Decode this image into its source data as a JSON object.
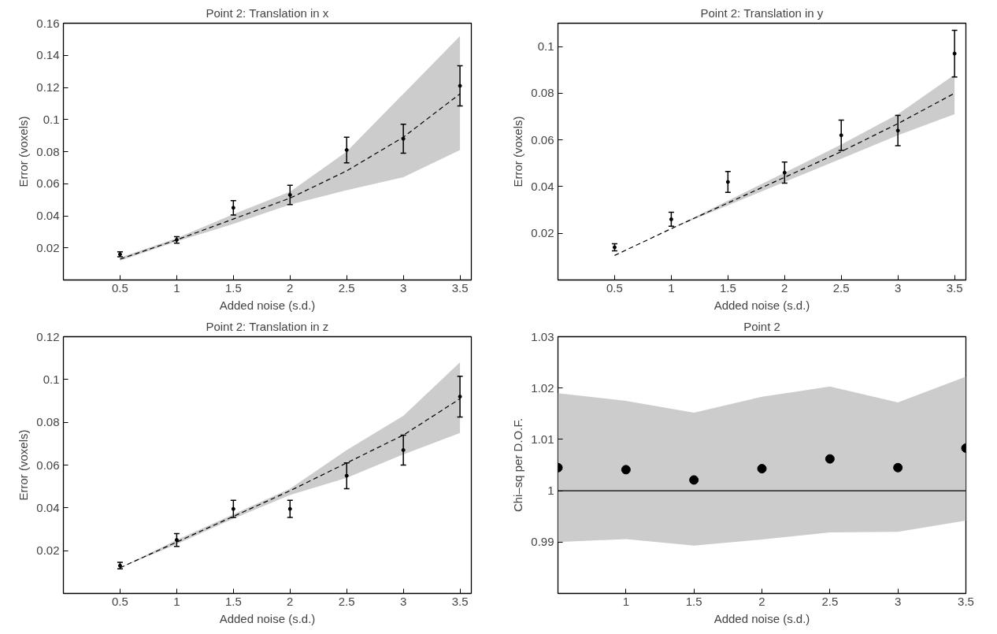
{
  "chart_data": [
    {
      "type": "scatter",
      "title": "Point 2: Translation in x",
      "xlabel": "Added noise (s.d.)",
      "ylabel": "Error (voxels)",
      "xlim": [
        0,
        3.6
      ],
      "ylim": [
        0,
        0.16
      ],
      "xticks": [
        0.5,
        1,
        1.5,
        2,
        2.5,
        3,
        3.5
      ],
      "yticks": [
        0.02,
        0.04,
        0.06,
        0.08,
        0.1,
        0.12,
        0.14,
        0.16
      ],
      "grid": false,
      "series": [
        {
          "type": "line",
          "marker": "none",
          "color": "#000000",
          "line_style": "dashed",
          "x": [
            0.5,
            1,
            1.5,
            2,
            2.5,
            3,
            3.5
          ],
          "values": [
            0.013,
            0.025,
            0.038,
            0.051,
            0.068,
            0.089,
            0.116
          ],
          "lower": [
            0.012,
            0.024,
            0.035,
            0.047,
            0.056,
            0.064,
            0.081
          ],
          "upper": [
            0.014,
            0.026,
            0.041,
            0.055,
            0.08,
            0.116,
            0.152
          ]
        },
        {
          "marker": "circle",
          "color": "#000000",
          "x": [
            0.5,
            1,
            1.5,
            2,
            2.5,
            3,
            3.5
          ],
          "values": [
            0.016,
            0.025,
            0.045,
            0.053,
            0.081,
            0.088,
            0.121
          ],
          "errors": [
            0.0015,
            0.002,
            0.0045,
            0.006,
            0.008,
            0.009,
            0.0125
          ]
        }
      ]
    },
    {
      "type": "scatter",
      "title": "Point 2: Translation in y",
      "xlabel": "Added noise (s.d.)",
      "ylabel": "Error (voxels)",
      "xlim": [
        0,
        3.6
      ],
      "ylim": [
        0,
        0.11
      ],
      "xticks": [
        0.5,
        1,
        1.5,
        2,
        2.5,
        3,
        3.5
      ],
      "yticks": [
        0.02,
        0.04,
        0.06,
        0.08,
        0.1
      ],
      "grid": false,
      "series": [
        {
          "type": "line",
          "marker": "none",
          "color": "#000000",
          "line_style": "dashed",
          "x": [
            0.5,
            1,
            1.5,
            2,
            2.5,
            3,
            3.5
          ],
          "values": [
            0.0105,
            0.022,
            0.033,
            0.044,
            0.055,
            0.067,
            0.08
          ],
          "lower": [
            0.0105,
            0.022,
            0.032,
            0.042,
            0.052,
            0.062,
            0.071
          ],
          "upper": [
            0.0105,
            0.022,
            0.034,
            0.046,
            0.058,
            0.071,
            0.088
          ]
        },
        {
          "marker": "circle",
          "color": "#000000",
          "x": [
            0.5,
            1,
            1.5,
            2,
            2.5,
            3,
            3.5
          ],
          "values": [
            0.014,
            0.026,
            0.042,
            0.046,
            0.062,
            0.064,
            0.097
          ],
          "errors": [
            0.0015,
            0.003,
            0.0045,
            0.0045,
            0.0065,
            0.0065,
            0.01
          ]
        }
      ]
    },
    {
      "type": "scatter",
      "title": "Point 2: Translation in z",
      "xlabel": "Added noise (s.d.)",
      "ylabel": "Error (voxels)",
      "xlim": [
        0,
        3.6
      ],
      "ylim": [
        0,
        0.12
      ],
      "xticks": [
        0.5,
        1,
        1.5,
        2,
        2.5,
        3,
        3.5
      ],
      "yticks": [
        0.02,
        0.04,
        0.06,
        0.08,
        0.1,
        0.12
      ],
      "grid": false,
      "series": [
        {
          "type": "line",
          "marker": "none",
          "color": "#000000",
          "line_style": "dashed",
          "x": [
            0.5,
            1,
            1.5,
            2,
            2.5,
            3,
            3.5
          ],
          "values": [
            0.012,
            0.024,
            0.036,
            0.048,
            0.061,
            0.074,
            0.091
          ],
          "lower": [
            0.012,
            0.023,
            0.035,
            0.046,
            0.054,
            0.065,
            0.075
          ],
          "upper": [
            0.012,
            0.025,
            0.037,
            0.049,
            0.067,
            0.083,
            0.108
          ]
        },
        {
          "marker": "circle",
          "color": "#000000",
          "x": [
            0.5,
            1,
            1.5,
            2,
            2.5,
            3,
            3.5
          ],
          "values": [
            0.013,
            0.025,
            0.0395,
            0.0395,
            0.055,
            0.067,
            0.092
          ],
          "errors": [
            0.0015,
            0.003,
            0.004,
            0.004,
            0.006,
            0.007,
            0.0095
          ]
        }
      ]
    },
    {
      "type": "scatter",
      "title": "Point 2",
      "xlabel": "Added noise (s.d.)",
      "ylabel": "Chi–sq per D.O.F.",
      "xlim": [
        0.5,
        3.5
      ],
      "ylim": [
        0.98,
        1.03
      ],
      "xticks": [
        1,
        1.5,
        2,
        2.5,
        3,
        3.5
      ],
      "yticks": [
        0.99,
        1,
        1.01,
        1.02,
        1.03
      ],
      "grid": false,
      "series": [
        {
          "type": "line",
          "marker": "none",
          "color": "#000000",
          "line_style": "solid",
          "x": [
            0.5,
            1,
            1.5,
            2,
            2.5,
            3,
            3.5
          ],
          "values": [
            1,
            1,
            1,
            1,
            1,
            1,
            1
          ],
          "lower": [
            0.99,
            0.9906,
            0.9893,
            0.9905,
            0.9919,
            0.992,
            0.9942
          ],
          "upper": [
            1.019,
            1.0175,
            1.0152,
            1.0183,
            1.0203,
            1.0172,
            1.0222
          ]
        },
        {
          "marker": "circle",
          "color": "#000000",
          "x": [
            0.5,
            1,
            1.5,
            2,
            2.5,
            3,
            3.5
          ],
          "values": [
            1.0045,
            1.0041,
            1.0021,
            1.0043,
            1.0062,
            1.0045,
            1.0083
          ]
        }
      ]
    }
  ]
}
